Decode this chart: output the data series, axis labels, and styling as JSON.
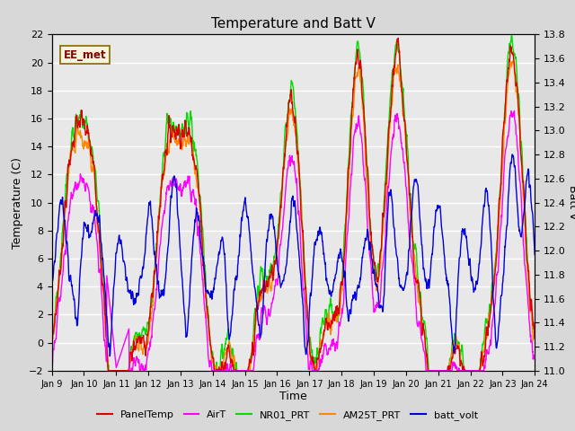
{
  "title": "Temperature and Batt V",
  "xlabel": "Time",
  "ylabel_left": "Temperature (C)",
  "ylabel_right": "Batt V",
  "ylim_left": [
    -2,
    22
  ],
  "ylim_right": [
    11.0,
    13.8
  ],
  "yticks_left": [
    -2,
    0,
    2,
    4,
    6,
    8,
    10,
    12,
    14,
    16,
    18,
    20,
    22
  ],
  "yticks_right": [
    11.0,
    11.2,
    11.4,
    11.6,
    11.8,
    12.0,
    12.2,
    12.4,
    12.6,
    12.8,
    13.0,
    13.2,
    13.4,
    13.6,
    13.8
  ],
  "xtick_labels": [
    "Jan 9",
    "Jan 10",
    "Jan 11",
    "Jan 12",
    "Jan 13",
    "Jan 14",
    "Jan 15",
    "Jan 16",
    "Jan 17",
    "Jan 18",
    "Jan 19",
    "Jan 20",
    "Jan 21",
    "Jan 22",
    "Jan 23",
    "Jan 24"
  ],
  "colors": {
    "PanelTemp": "#dd0000",
    "AirT": "#ff00ff",
    "NR01_PRT": "#00dd00",
    "AM25T_PRT": "#ff8800",
    "batt_volt": "#0000dd"
  },
  "legend_label": "EE_met",
  "legend_label_fgcolor": "#880000",
  "legend_label_bgcolor": "#f5f5dc",
  "legend_label_edgecolor": "#886600",
  "bg_color": "#d8d8d8",
  "plot_bg_color": "#e8e8e8",
  "grid_color": "#ffffff",
  "linewidth": 1.0,
  "n_points": 1440
}
